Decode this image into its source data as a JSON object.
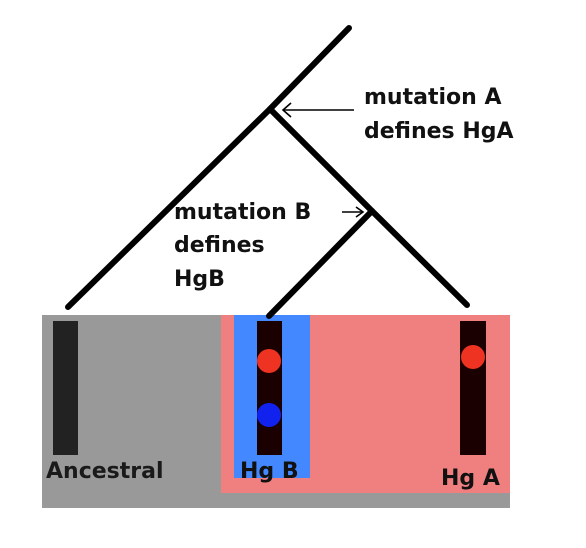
{
  "labels": {
    "mutation_a_line1": "mutation A",
    "mutation_a_line2": "defines HgA",
    "mutation_b_line1": "mutation B",
    "mutation_b_line2": "defines",
    "mutation_b_line3": "HgB",
    "ancestral": "Ancestral",
    "hg_b": "Hg B",
    "hg_a": "Hg A"
  },
  "colors": {
    "ancestral_region": "#999999",
    "hg_a_region": "#f08080",
    "hg_b_region": "#4488ff",
    "chromosome": "#1a0000",
    "ancestral_chromosome": "#222222",
    "mutation_a_marker": "#ee3322",
    "mutation_b_marker": "#1122ee",
    "tree_line": "#000000"
  }
}
